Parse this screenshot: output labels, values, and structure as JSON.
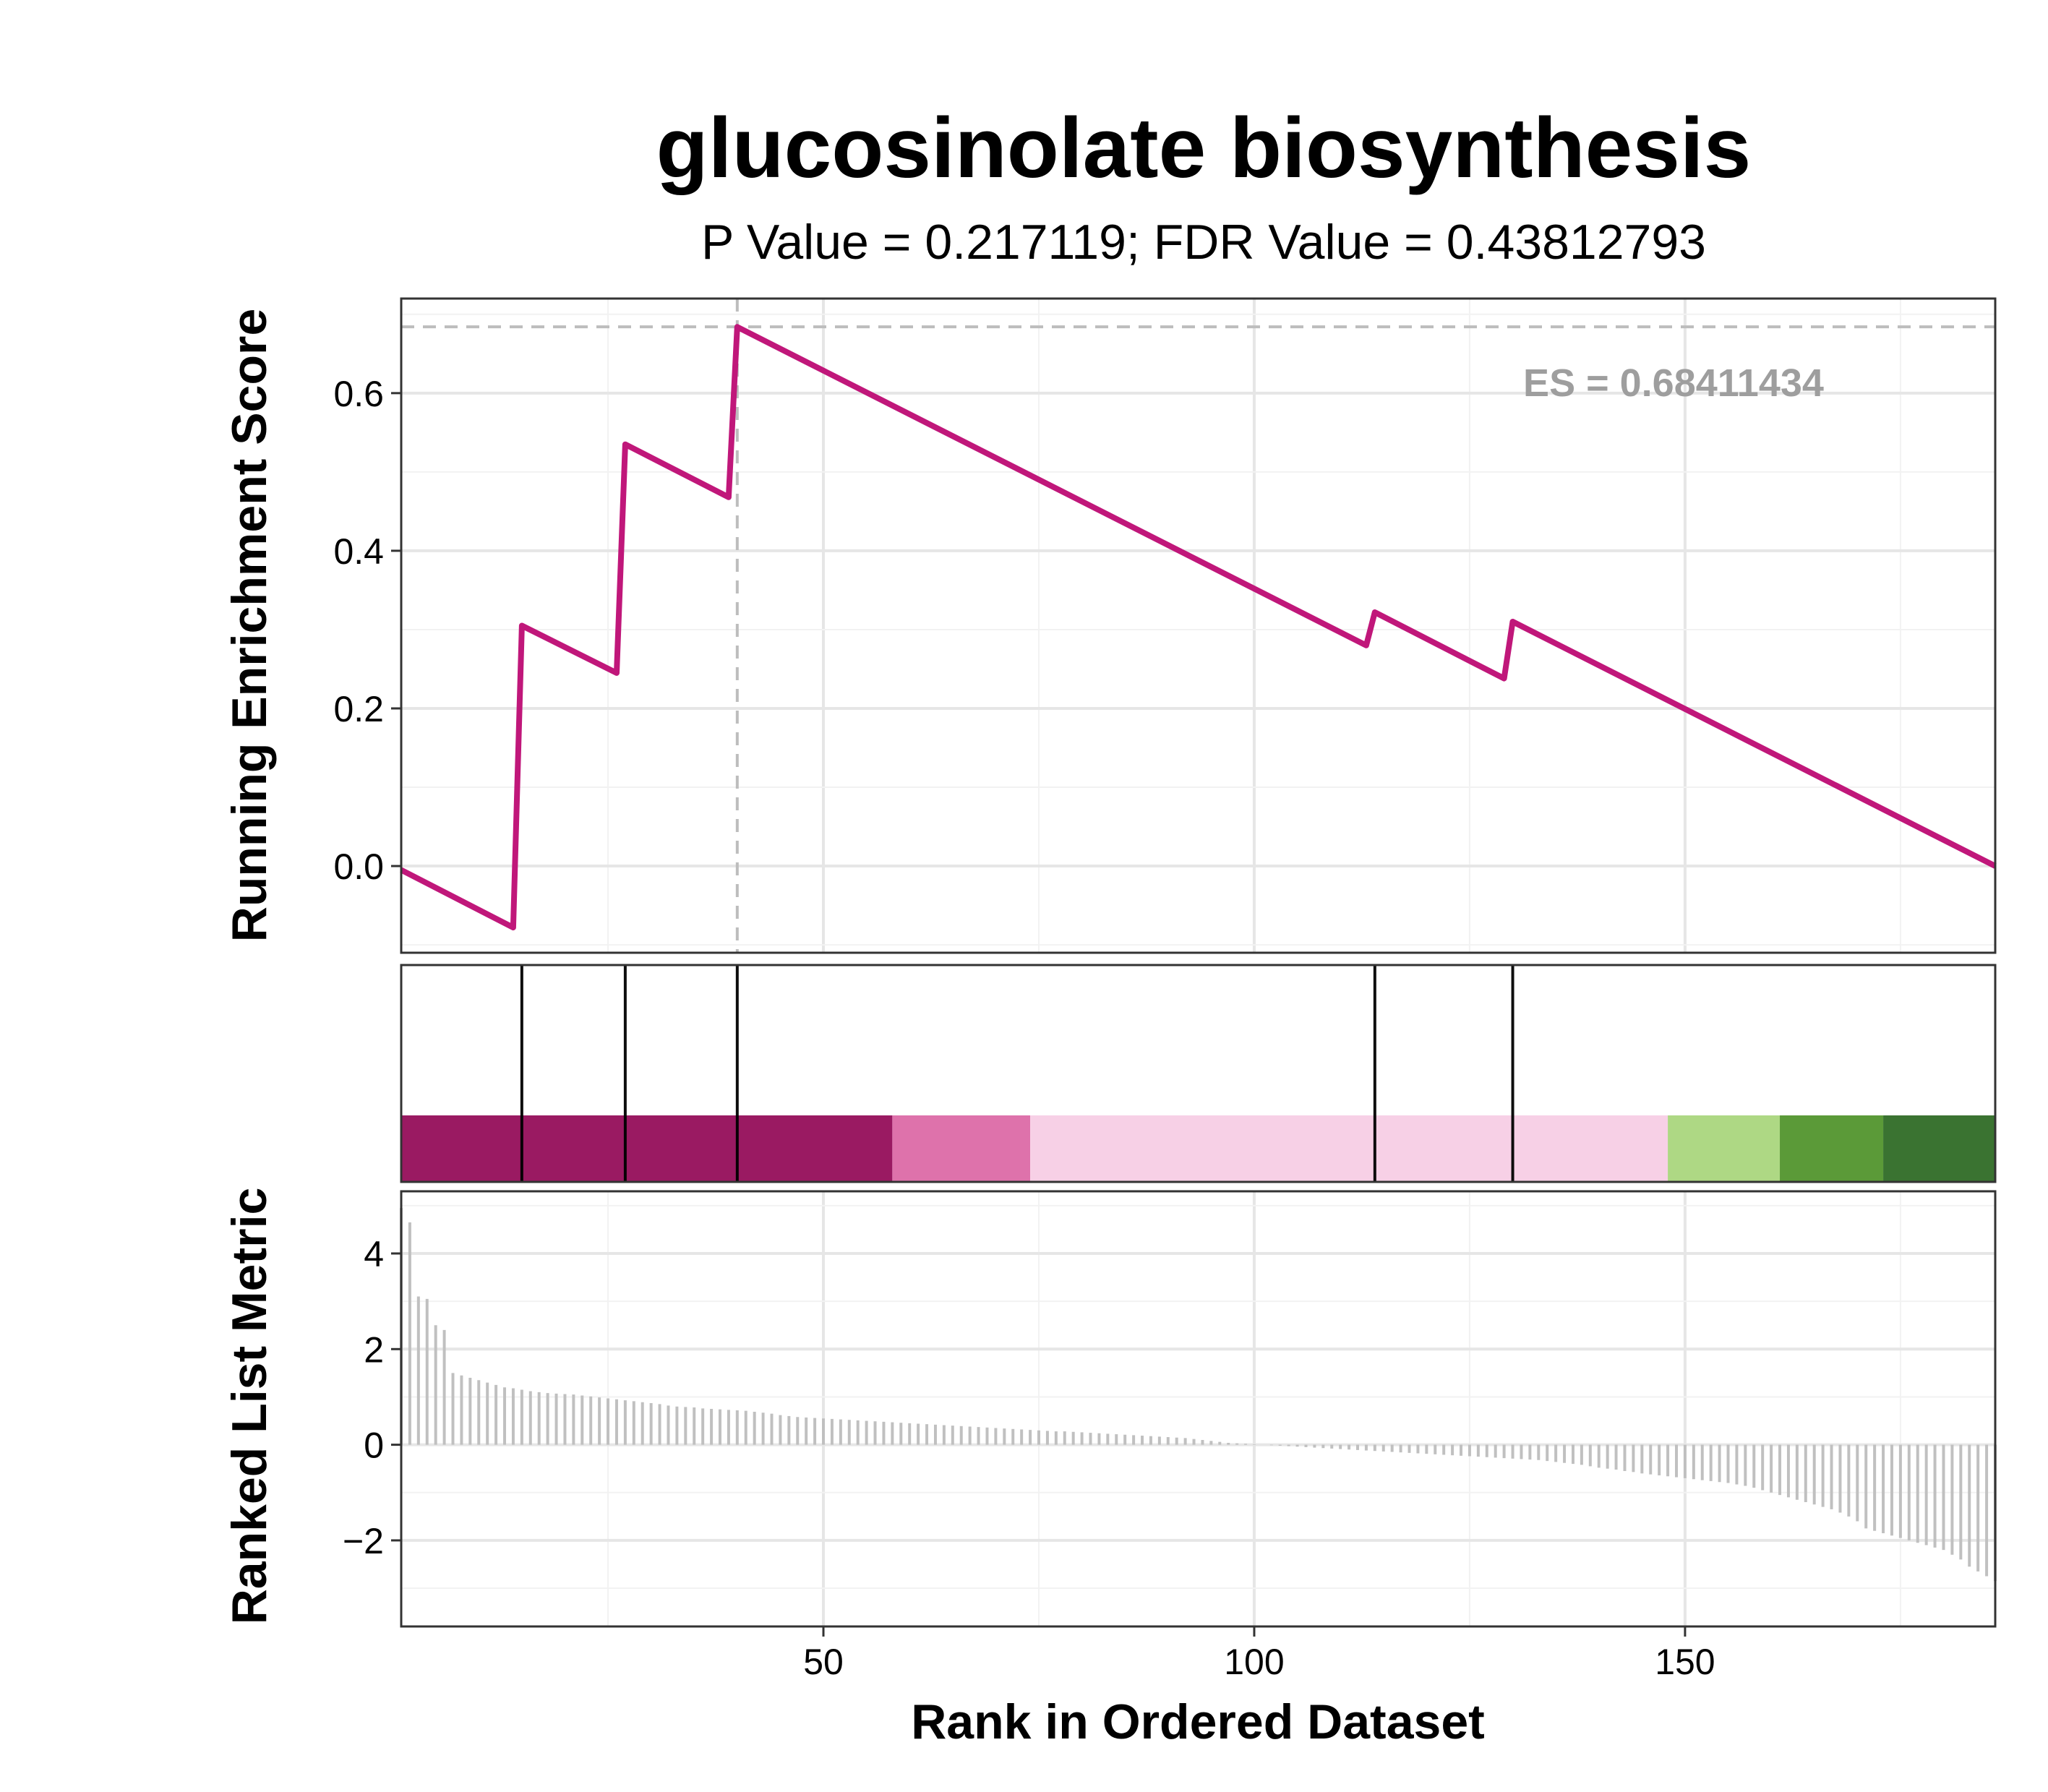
{
  "chart_data": {
    "type": "line",
    "title": "glucosinolate biosynthesis",
    "subtitle": "P Value = 0.217119; FDR Value = 0.43812793",
    "xlabel": "Rank in Ordered Dataset",
    "xlim": [
      1,
      186
    ],
    "x_ticks": [
      50,
      100,
      150
    ],
    "x_tick_labels": [
      "50",
      "100",
      "150"
    ],
    "grid": true,
    "enrichment": {
      "ylabel": "Running Enrichment Score",
      "ylim": [
        -0.11,
        0.72
      ],
      "y_ticks": [
        0.0,
        0.2,
        0.4,
        0.6
      ],
      "y_tick_labels": [
        "0.0",
        "0.2",
        "0.4",
        "0.6"
      ],
      "es_label": "ES = 0.68411434",
      "es_value": 0.68411434,
      "es_rank": 40,
      "colors": {
        "line": "#c0177a",
        "reference": "#bdbdbd",
        "es_text": "#9e9e9e"
      },
      "points": [
        [
          1,
          -0.005
        ],
        [
          14,
          -0.078
        ],
        [
          15,
          0.305
        ],
        [
          26,
          0.245
        ],
        [
          27,
          0.535
        ],
        [
          39,
          0.468
        ],
        [
          40,
          0.684
        ],
        [
          113,
          0.28
        ],
        [
          114,
          0.322
        ],
        [
          129,
          0.238
        ],
        [
          130,
          0.31
        ],
        [
          186,
          0.0
        ]
      ]
    },
    "hits": {
      "ranks": [
        15,
        27,
        40,
        114,
        130
      ],
      "color": "#000000"
    },
    "color_bands": [
      {
        "start": 1,
        "end": 58,
        "color": "#9a1a62"
      },
      {
        "start": 58,
        "end": 74,
        "color": "#de72ab"
      },
      {
        "start": 74,
        "end": 148,
        "color": "#f7d0e6"
      },
      {
        "start": 148,
        "end": 161,
        "color": "#aed884"
      },
      {
        "start": 161,
        "end": 173,
        "color": "#5b9a38"
      },
      {
        "start": 173,
        "end": 186,
        "color": "#3a7331"
      }
    ],
    "ranked_metric": {
      "ylabel": "Ranked List Metric",
      "ylim": [
        -3.8,
        5.3
      ],
      "y_ticks": [
        -2,
        0,
        2,
        4
      ],
      "y_tick_labels": [
        "−2",
        "0",
        "2",
        "4"
      ],
      "bar_color": "#c0c0c0",
      "values": [
        4.95,
        4.65,
        3.1,
        3.05,
        2.5,
        2.4,
        1.5,
        1.45,
        1.4,
        1.35,
        1.3,
        1.25,
        1.2,
        1.18,
        1.15,
        1.12,
        1.1,
        1.08,
        1.07,
        1.06,
        1.05,
        1.03,
        1.01,
        0.99,
        0.97,
        0.95,
        0.93,
        0.91,
        0.89,
        0.87,
        0.85,
        0.82,
        0.8,
        0.79,
        0.78,
        0.76,
        0.75,
        0.74,
        0.73,
        0.72,
        0.71,
        0.69,
        0.67,
        0.65,
        0.62,
        0.6,
        0.58,
        0.57,
        0.56,
        0.55,
        0.54,
        0.53,
        0.52,
        0.51,
        0.5,
        0.49,
        0.48,
        0.47,
        0.46,
        0.45,
        0.44,
        0.43,
        0.42,
        0.41,
        0.4,
        0.39,
        0.38,
        0.37,
        0.36,
        0.35,
        0.34,
        0.33,
        0.32,
        0.31,
        0.3,
        0.29,
        0.28,
        0.28,
        0.27,
        0.26,
        0.25,
        0.24,
        0.23,
        0.22,
        0.21,
        0.2,
        0.19,
        0.18,
        0.17,
        0.16,
        0.15,
        0.14,
        0.12,
        0.1,
        0.08,
        0.06,
        0.04,
        0.03,
        0.02,
        0.01,
        0.0,
        -0.01,
        -0.02,
        -0.03,
        -0.04,
        -0.05,
        -0.06,
        -0.07,
        -0.08,
        -0.09,
        -0.1,
        -0.11,
        -0.12,
        -0.13,
        -0.14,
        -0.15,
        -0.16,
        -0.17,
        -0.18,
        -0.19,
        -0.2,
        -0.21,
        -0.22,
        -0.23,
        -0.24,
        -0.25,
        -0.26,
        -0.27,
        -0.28,
        -0.29,
        -0.3,
        -0.31,
        -0.32,
        -0.34,
        -0.36,
        -0.38,
        -0.4,
        -0.42,
        -0.45,
        -0.48,
        -0.5,
        -0.52,
        -0.55,
        -0.57,
        -0.6,
        -0.62,
        -0.64,
        -0.66,
        -0.68,
        -0.7,
        -0.72,
        -0.74,
        -0.76,
        -0.78,
        -0.8,
        -0.83,
        -0.86,
        -0.9,
        -0.95,
        -1.0,
        -1.05,
        -1.1,
        -1.15,
        -1.2,
        -1.25,
        -1.3,
        -1.35,
        -1.42,
        -1.5,
        -1.6,
        -1.75,
        -1.8,
        -1.85,
        -1.9,
        -1.95,
        -2.0,
        -2.05,
        -2.1,
        -2.15,
        -2.2,
        -2.3,
        -2.4,
        -2.55,
        -2.65,
        -2.75,
        -2.85
      ]
    }
  }
}
